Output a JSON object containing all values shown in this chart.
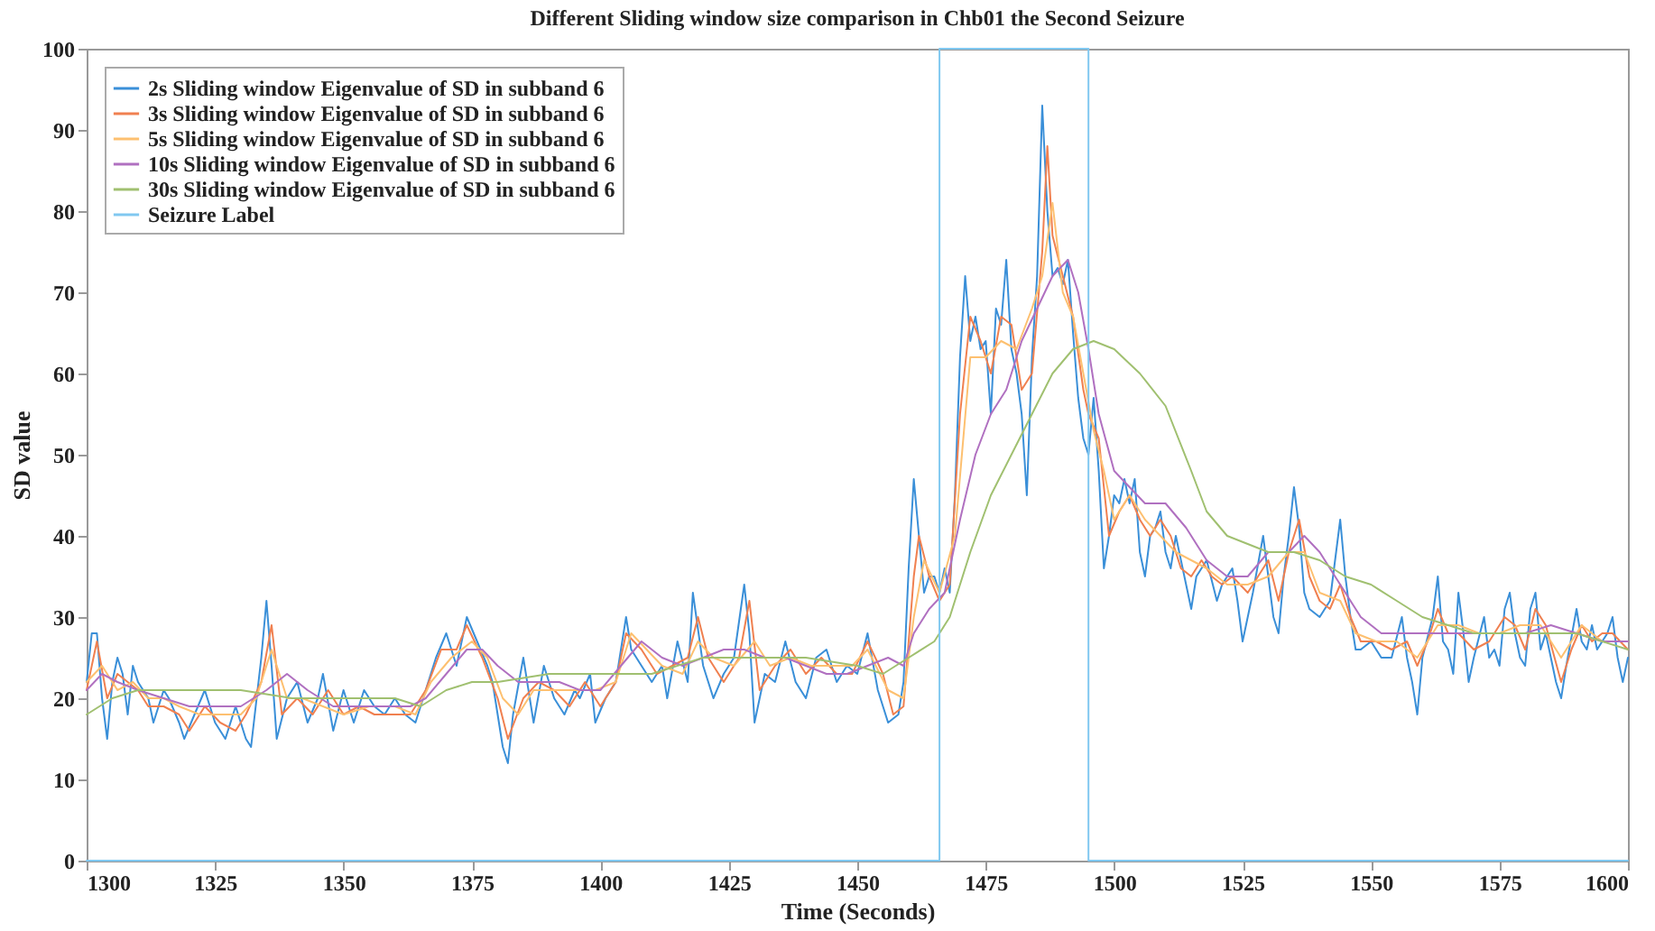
{
  "chart_data": {
    "type": "line",
    "title": "Different Sliding window size comparison in Chb01 the Second Seizure",
    "xlabel": "Time (Seconds)",
    "ylabel": "SD value",
    "xlim": [
      1300,
      1600
    ],
    "xticks": [
      1300,
      1325,
      1350,
      1375,
      1400,
      1425,
      1450,
      1475,
      1500,
      1525,
      1550,
      1575,
      1600
    ],
    "ylim": [
      0,
      100
    ],
    "yticks": [
      0,
      10,
      20,
      30,
      40,
      50,
      60,
      70,
      80,
      90,
      100
    ],
    "grid": false,
    "legend": "top left",
    "line_style": "solid",
    "series": [
      {
        "name": "2s Sliding window Eigenvalue of SD in subband 6",
        "color": "#3a8fd8",
        "x": [
          1300,
          1301,
          1302,
          1303,
          1304,
          1305,
          1306,
          1307,
          1308,
          1309,
          1310,
          1312,
          1313,
          1315,
          1316,
          1318,
          1319,
          1321,
          1323,
          1325,
          1327,
          1329,
          1331,
          1332,
          1334,
          1335,
          1336,
          1337,
          1339,
          1341,
          1343,
          1345,
          1346,
          1348,
          1350,
          1352,
          1354,
          1356,
          1358,
          1360,
          1362,
          1364,
          1366,
          1368,
          1370,
          1372,
          1374,
          1376,
          1378,
          1379,
          1380,
          1381,
          1382,
          1383,
          1385,
          1386,
          1387,
          1389,
          1391,
          1393,
          1395,
          1396,
          1398,
          1399,
          1401,
          1403,
          1405,
          1406,
          1408,
          1410,
          1412,
          1413,
          1415,
          1417,
          1418,
          1420,
          1422,
          1424,
          1426,
          1428,
          1429,
          1430,
          1432,
          1434,
          1436,
          1438,
          1440,
          1442,
          1444,
          1446,
          1448,
          1450,
          1452,
          1454,
          1456,
          1458,
          1459,
          1460,
          1461,
          1462,
          1463,
          1464,
          1465,
          1466,
          1467,
          1468,
          1469,
          1470,
          1471,
          1472,
          1473,
          1474,
          1475,
          1476,
          1477,
          1478,
          1479,
          1480,
          1481,
          1482,
          1483,
          1484,
          1485,
          1486,
          1487,
          1488,
          1489,
          1490,
          1491,
          1492,
          1493,
          1494,
          1495,
          1496,
          1497,
          1498,
          1499,
          1500,
          1501,
          1502,
          1503,
          1504,
          1505,
          1506,
          1507,
          1508,
          1509,
          1510,
          1511,
          1512,
          1514,
          1515,
          1516,
          1518,
          1520,
          1521,
          1523,
          1524,
          1525,
          1527,
          1529,
          1530,
          1531,
          1532,
          1533,
          1534,
          1535,
          1536,
          1537,
          1538,
          1540,
          1542,
          1543,
          1544,
          1545,
          1546,
          1547,
          1548,
          1550,
          1552,
          1554,
          1556,
          1557,
          1558,
          1559,
          1560,
          1562,
          1563,
          1564,
          1565,
          1566,
          1567,
          1568,
          1569,
          1570,
          1572,
          1573,
          1574,
          1575,
          1576,
          1577,
          1578,
          1579,
          1580,
          1581,
          1582,
          1583,
          1584,
          1585,
          1586,
          1587,
          1588,
          1590,
          1591,
          1592,
          1593,
          1594,
          1596,
          1597,
          1598,
          1599,
          1600
        ],
        "values": [
          22,
          28,
          28,
          20,
          15,
          22,
          25,
          23,
          18,
          24,
          22,
          20,
          17,
          21,
          20,
          17,
          15,
          18,
          21,
          17,
          15,
          19,
          15,
          14,
          25,
          32,
          24,
          15,
          20,
          22,
          17,
          20,
          23,
          16,
          21,
          17,
          21,
          19,
          18,
          20,
          18,
          17,
          21,
          25,
          28,
          24,
          30,
          27,
          24,
          22,
          18,
          14,
          12,
          18,
          25,
          21,
          17,
          24,
          20,
          18,
          21,
          20,
          23,
          17,
          20,
          22,
          30,
          26,
          24,
          22,
          24,
          20,
          27,
          22,
          33,
          24,
          20,
          23,
          25,
          34,
          28,
          17,
          23,
          22,
          27,
          22,
          20,
          25,
          26,
          22,
          24,
          23,
          28,
          21,
          17,
          18,
          22,
          36,
          47,
          40,
          33,
          35,
          35,
          33,
          36,
          33,
          45,
          62,
          72,
          64,
          67,
          63,
          64,
          55,
          68,
          66,
          74,
          63,
          60,
          55,
          45,
          62,
          72,
          93,
          80,
          72,
          73,
          71,
          74,
          65,
          57,
          52,
          50,
          57,
          48,
          36,
          40,
          45,
          44,
          47,
          44,
          47,
          38,
          35,
          40,
          41,
          43,
          38,
          36,
          40,
          34,
          31,
          35,
          37,
          32,
          34,
          36,
          32,
          27,
          33,
          40,
          35,
          30,
          28,
          35,
          40,
          46,
          41,
          33,
          31,
          30,
          32,
          37,
          42,
          35,
          30,
          26,
          26,
          27,
          25,
          25,
          30,
          25,
          22,
          18,
          25,
          30,
          35,
          27,
          26,
          23,
          33,
          28,
          22,
          25,
          30,
          25,
          26,
          24,
          31,
          33,
          28,
          25,
          24,
          31,
          33,
          26,
          28,
          25,
          22,
          20,
          24,
          31,
          27,
          26,
          29,
          26,
          28,
          30,
          25,
          22,
          25
        ]
      },
      {
        "name": "3s Sliding window Eigenvalue of SD in subband 6",
        "color": "#f08050",
        "x": [
          1300,
          1302,
          1304,
          1306,
          1308,
          1310,
          1312,
          1315,
          1318,
          1320,
          1323,
          1326,
          1329,
          1331,
          1334,
          1336,
          1338,
          1341,
          1344,
          1347,
          1350,
          1353,
          1356,
          1360,
          1363,
          1366,
          1369,
          1372,
          1374,
          1377,
          1380,
          1382,
          1385,
          1388,
          1391,
          1394,
          1397,
          1400,
          1403,
          1405,
          1408,
          1411,
          1414,
          1417,
          1419,
          1421,
          1424,
          1427,
          1429,
          1431,
          1434,
          1437,
          1440,
          1443,
          1446,
          1449,
          1452,
          1455,
          1457,
          1459,
          1461,
          1462,
          1464,
          1466,
          1468,
          1470,
          1472,
          1474,
          1476,
          1478,
          1480,
          1482,
          1484,
          1486,
          1487,
          1488,
          1490,
          1492,
          1494,
          1495,
          1497,
          1499,
          1501,
          1503,
          1505,
          1507,
          1509,
          1511,
          1513,
          1515,
          1517,
          1519,
          1521,
          1523,
          1526,
          1528,
          1530,
          1532,
          1534,
          1536,
          1538,
          1540,
          1542,
          1544,
          1546,
          1548,
          1551,
          1554,
          1557,
          1559,
          1561,
          1563,
          1565,
          1567,
          1570,
          1573,
          1576,
          1578,
          1580,
          1582,
          1584,
          1587,
          1589,
          1591,
          1593,
          1595,
          1597,
          1600
        ],
        "values": [
          21,
          27,
          20,
          23,
          22,
          21,
          19,
          19,
          18,
          16,
          19,
          17,
          16,
          18,
          22,
          29,
          18,
          20,
          18,
          21,
          18,
          19,
          18,
          18,
          18,
          21,
          26,
          26,
          29,
          25,
          20,
          15,
          20,
          22,
          21,
          19,
          22,
          19,
          22,
          28,
          26,
          23,
          24,
          25,
          30,
          25,
          22,
          25,
          32,
          21,
          24,
          26,
          23,
          25,
          23,
          23,
          27,
          23,
          18,
          19,
          35,
          40,
          35,
          32,
          34,
          55,
          67,
          64,
          60,
          67,
          66,
          58,
          60,
          75,
          88,
          77,
          72,
          67,
          58,
          55,
          52,
          40,
          43,
          45,
          42,
          40,
          42,
          40,
          36,
          35,
          37,
          35,
          34,
          35,
          33,
          35,
          37,
          32,
          38,
          42,
          35,
          32,
          31,
          34,
          30,
          27,
          27,
          26,
          27,
          24,
          27,
          31,
          28,
          28,
          26,
          27,
          30,
          29,
          26,
          31,
          29,
          22,
          26,
          29,
          27,
          28,
          28,
          26
        ]
      },
      {
        "name": "5s Sliding window Eigenvalue of SD in subband 6",
        "color": "#fdc070",
        "x": [
          1300,
          1303,
          1306,
          1309,
          1312,
          1315,
          1318,
          1322,
          1326,
          1330,
          1333,
          1336,
          1339,
          1342,
          1346,
          1350,
          1355,
          1360,
          1364,
          1367,
          1371,
          1375,
          1378,
          1381,
          1384,
          1387,
          1391,
          1395,
          1399,
          1403,
          1406,
          1409,
          1412,
          1416,
          1419,
          1422,
          1426,
          1430,
          1433,
          1437,
          1441,
          1445,
          1449,
          1452,
          1456,
          1459,
          1461,
          1463,
          1466,
          1469,
          1472,
          1475,
          1478,
          1481,
          1484,
          1486,
          1488,
          1490,
          1492,
          1494,
          1496,
          1498,
          1500,
          1503,
          1506,
          1509,
          1512,
          1515,
          1518,
          1522,
          1526,
          1530,
          1534,
          1537,
          1540,
          1544,
          1547,
          1551,
          1555,
          1559,
          1563,
          1567,
          1571,
          1575,
          1579,
          1583,
          1587,
          1591,
          1595,
          1600
        ],
        "values": [
          22,
          24,
          21,
          22,
          20,
          20,
          19,
          18,
          18,
          18,
          20,
          26,
          20,
          20,
          19,
          18,
          19,
          19,
          18,
          22,
          25,
          27,
          25,
          20,
          18,
          21,
          21,
          21,
          21,
          22,
          28,
          26,
          24,
          23,
          27,
          25,
          24,
          27,
          24,
          25,
          24,
          24,
          24,
          26,
          21,
          20,
          30,
          37,
          33,
          40,
          62,
          62,
          64,
          63,
          68,
          72,
          81,
          70,
          67,
          60,
          53,
          48,
          42,
          45,
          42,
          40,
          38,
          37,
          36,
          34,
          34,
          35,
          38,
          38,
          33,
          32,
          28,
          27,
          27,
          25,
          29,
          29,
          28,
          28,
          29,
          29,
          25,
          29,
          27,
          27
        ]
      },
      {
        "name": "10s Sliding window Eigenvalue of SD in subband 6",
        "color": "#b070c0",
        "x": [
          1300,
          1303,
          1306,
          1310,
          1315,
          1320,
          1325,
          1330,
          1335,
          1339,
          1343,
          1348,
          1353,
          1358,
          1363,
          1366,
          1370,
          1374,
          1377,
          1380,
          1384,
          1388,
          1392,
          1396,
          1400,
          1404,
          1408,
          1412,
          1416,
          1420,
          1424,
          1428,
          1432,
          1436,
          1440,
          1444,
          1448,
          1452,
          1456,
          1459,
          1461,
          1464,
          1467,
          1470,
          1473,
          1476,
          1479,
          1482,
          1485,
          1488,
          1491,
          1493,
          1495,
          1497,
          1500,
          1503,
          1506,
          1510,
          1514,
          1518,
          1522,
          1526,
          1530,
          1534,
          1537,
          1540,
          1544,
          1548,
          1552,
          1556,
          1560,
          1565,
          1570,
          1575,
          1580,
          1585,
          1590,
          1595,
          1600
        ],
        "values": [
          21,
          23,
          22,
          21,
          20,
          19,
          19,
          19,
          21,
          23,
          21,
          19,
          19,
          19,
          19,
          20,
          23,
          26,
          26,
          24,
          22,
          22,
          22,
          21,
          21,
          24,
          27,
          25,
          24,
          25,
          26,
          26,
          25,
          25,
          24,
          23,
          23,
          24,
          25,
          24,
          28,
          31,
          33,
          42,
          50,
          55,
          58,
          64,
          68,
          72,
          74,
          70,
          63,
          55,
          48,
          46,
          44,
          44,
          41,
          37,
          35,
          35,
          38,
          38,
          40,
          38,
          34,
          30,
          28,
          28,
          28,
          28,
          28,
          28,
          28,
          29,
          28,
          27,
          27
        ]
      },
      {
        "name": "30s Sliding window Eigenvalue of SD in subband 6",
        "color": "#a0c070",
        "x": [
          1300,
          1305,
          1310,
          1320,
          1330,
          1340,
          1350,
          1360,
          1365,
          1370,
          1375,
          1380,
          1390,
          1400,
          1410,
          1420,
          1430,
          1440,
          1450,
          1455,
          1460,
          1465,
          1468,
          1472,
          1476,
          1480,
          1484,
          1488,
          1492,
          1496,
          1500,
          1505,
          1510,
          1515,
          1518,
          1522,
          1526,
          1530,
          1535,
          1540,
          1545,
          1550,
          1555,
          1560,
          1565,
          1570,
          1575,
          1580,
          1585,
          1590,
          1595,
          1600
        ],
        "values": [
          18,
          20,
          21,
          21,
          21,
          20,
          20,
          20,
          19,
          21,
          22,
          22,
          23,
          23,
          23,
          25,
          25,
          25,
          24,
          23,
          25,
          27,
          30,
          38,
          45,
          50,
          55,
          60,
          63,
          64,
          63,
          60,
          56,
          48,
          43,
          40,
          39,
          38,
          38,
          37,
          35,
          34,
          32,
          30,
          29,
          28,
          28,
          28,
          28,
          28,
          27,
          26
        ]
      },
      {
        "name": "Seizure Label",
        "color": "#80c8f0",
        "x": [
          1300,
          1466,
          1466,
          1495,
          1495,
          1600
        ],
        "values": [
          0,
          0,
          100,
          100,
          0,
          0
        ]
      }
    ]
  }
}
